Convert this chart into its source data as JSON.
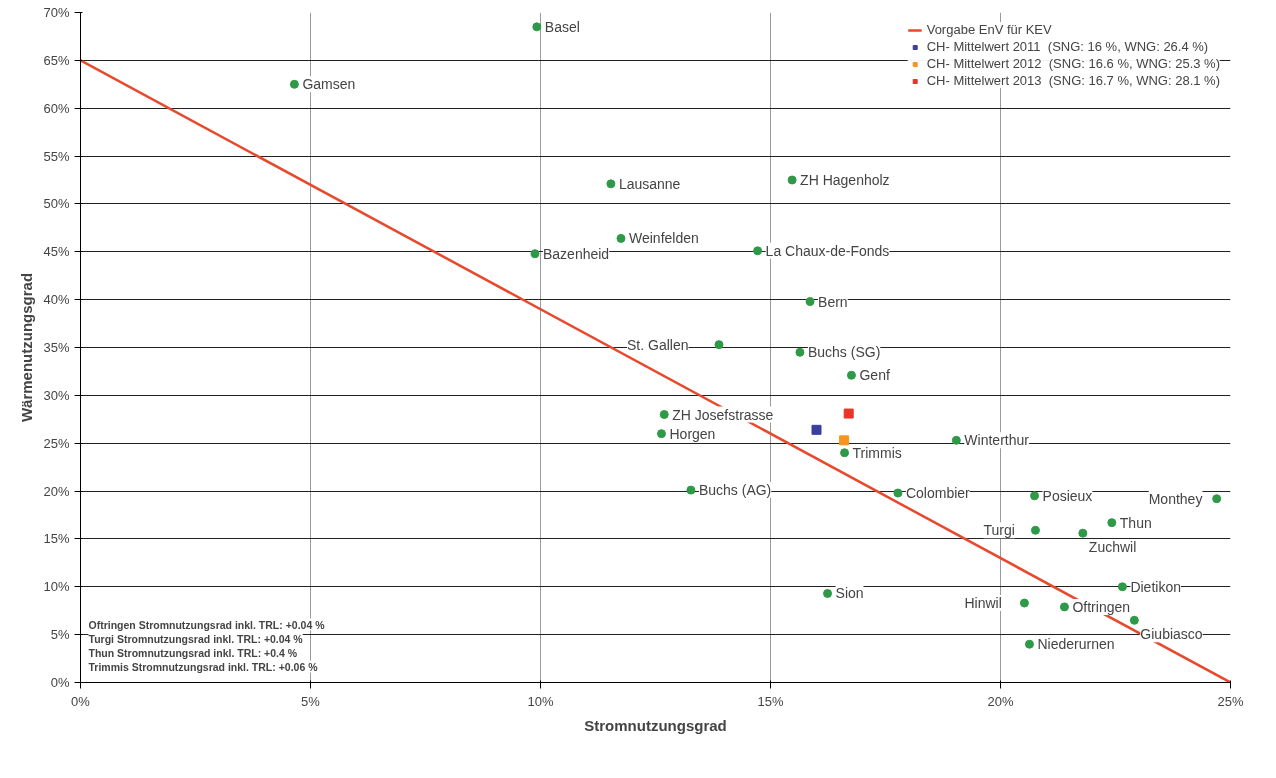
{
  "chart_data": {
    "type": "scatter",
    "xlabel": "Stromnutzungsgrad",
    "ylabel": "Wärmenutzungsgrad",
    "xlim": [
      0,
      25
    ],
    "ylim": [
      0,
      70
    ],
    "xticks": [
      {
        "value": 0,
        "label": "0%"
      },
      {
        "value": 5,
        "label": "5%"
      },
      {
        "value": 10,
        "label": "10%"
      },
      {
        "value": 15,
        "label": "15%"
      },
      {
        "value": 20,
        "label": "20%"
      },
      {
        "value": 25,
        "label": "25%"
      }
    ],
    "yticks": [
      {
        "value": 0,
        "label": "0%"
      },
      {
        "value": 5,
        "label": "5%"
      },
      {
        "value": 10,
        "label": "10%"
      },
      {
        "value": 15,
        "label": "15%"
      },
      {
        "value": 20,
        "label": "20%"
      },
      {
        "value": 25,
        "label": "25%"
      },
      {
        "value": 30,
        "label": "30%"
      },
      {
        "value": 35,
        "label": "35%"
      },
      {
        "value": 40,
        "label": "40%"
      },
      {
        "value": 45,
        "label": "45%"
      },
      {
        "value": 50,
        "label": "50%"
      },
      {
        "value": 55,
        "label": "55%"
      },
      {
        "value": 60,
        "label": "60%"
      },
      {
        "value": 65,
        "label": "65%"
      },
      {
        "value": 70,
        "label": "70%"
      }
    ],
    "grid": true,
    "legend": "top right",
    "marker": "circle",
    "series": [
      {
        "type": "line",
        "name": "Vorgabe EnV für KEV",
        "color": "#e8482c",
        "x": [
          0,
          25
        ],
        "values": [
          65,
          0
        ],
        "marker": "none"
      },
      {
        "color": "#2e9a47",
        "x": [
          9.92,
          4.65,
          11.53,
          15.47,
          11.75,
          9.88,
          14.72,
          15.86,
          13.88,
          15.64,
          16.76,
          12.69,
          12.63,
          16.61,
          19.04,
          13.27,
          17.77,
          20.74,
          24.7,
          22.42,
          20.76,
          21.79,
          22.65,
          16.24,
          20.52,
          21.39,
          22.91,
          20.63
        ],
        "values": [
          68.5,
          62.5,
          52.1,
          52.5,
          46.4,
          44.8,
          45.1,
          39.8,
          35.3,
          34.5,
          32.1,
          28.0,
          26.0,
          24.0,
          25.3,
          20.1,
          19.8,
          19.5,
          19.2,
          16.7,
          15.9,
          15.6,
          10.0,
          9.3,
          8.3,
          7.9,
          6.5,
          4.0
        ]
      },
      {
        "name": "CH- Mittelwert 2011  (SNG: 16 %, WNG: 26.4 %)",
        "color": "#3a3fa0",
        "marker": "square",
        "x": [
          16.0
        ],
        "values": [
          26.4
        ]
      },
      {
        "name": "CH- Mittelwert 2012  (SNG: 16.6 %, WNG: 25.3 %)",
        "color": "#f7941d",
        "marker": "square",
        "x": [
          16.6
        ],
        "values": [
          25.3
        ]
      },
      {
        "name": "CH- Mittelwert 2013  (SNG: 16.7 %, WNG: 28.1 %)",
        "color": "#e8352a",
        "marker": "square",
        "x": [
          16.7
        ],
        "values": [
          28.1
        ]
      }
    ],
    "annotations": [
      "Oftringen Stromnutzungsrad inkl. TRL: +0.04 %",
      "Turgi Stromnutzungsrad inkl. TRL: +0.04 %",
      "Thun Stromnutzungsrad inkl. TRL: +0.4 %",
      "Trimmis Stromnutzungsrad inkl. TRL: +0.06 %",
      {
        "text": "Basel",
        "x": 9.92,
        "y": 68.5
      },
      {
        "text": "Gamsen",
        "x": 4.65,
        "y": 62.5
      },
      {
        "text": "Lausanne",
        "x": 11.53,
        "y": 52.1
      },
      {
        "text": "ZH Hagenholz",
        "x": 15.47,
        "y": 52.5
      },
      {
        "text": "Weinfelden",
        "x": 11.75,
        "y": 46.4
      },
      {
        "text": "Bazenheid",
        "x": 9.88,
        "y": 44.8
      },
      {
        "text": "La Chaux-de-Fonds",
        "x": 14.72,
        "y": 45.1
      },
      {
        "text": "Bern",
        "x": 15.86,
        "y": 39.8
      },
      {
        "text": "St. Gallen",
        "x": 13.88,
        "y": 35.3
      },
      {
        "text": "Buchs (SG)",
        "x": 15.64,
        "y": 34.5
      },
      {
        "text": "Genf",
        "x": 16.76,
        "y": 32.1
      },
      {
        "text": "ZH Josefstrasse",
        "x": 12.69,
        "y": 28.0
      },
      {
        "text": "Horgen",
        "x": 12.63,
        "y": 26.0
      },
      {
        "text": "Trimmis",
        "x": 16.61,
        "y": 24.0
      },
      {
        "text": "Winterthur",
        "x": 19.04,
        "y": 25.3
      },
      {
        "text": "Buchs (AG)",
        "x": 13.27,
        "y": 20.1
      },
      {
        "text": "Colombier",
        "x": 17.77,
        "y": 19.8
      },
      {
        "text": "Posieux",
        "x": 20.74,
        "y": 19.5
      },
      {
        "text": "Monthey",
        "x": 24.7,
        "y": 19.2
      },
      {
        "text": "Thun",
        "x": 22.42,
        "y": 16.7
      },
      {
        "text": "Turgi",
        "x": 20.76,
        "y": 15.9
      },
      {
        "text": "Zuchwil",
        "x": 21.79,
        "y": 15.6
      },
      {
        "text": "Dietikon",
        "x": 22.65,
        "y": 10.0
      },
      {
        "text": "Sion",
        "x": 16.24,
        "y": 9.3
      },
      {
        "text": "Hinwil",
        "x": 20.52,
        "y": 8.3
      },
      {
        "text": "Oftringen",
        "x": 21.39,
        "y": 7.9
      },
      {
        "text": "Giubiasco",
        "x": 22.91,
        "y": 6.5
      },
      {
        "text": "Niederurnen",
        "x": 20.63,
        "y": 4.0
      }
    ]
  }
}
